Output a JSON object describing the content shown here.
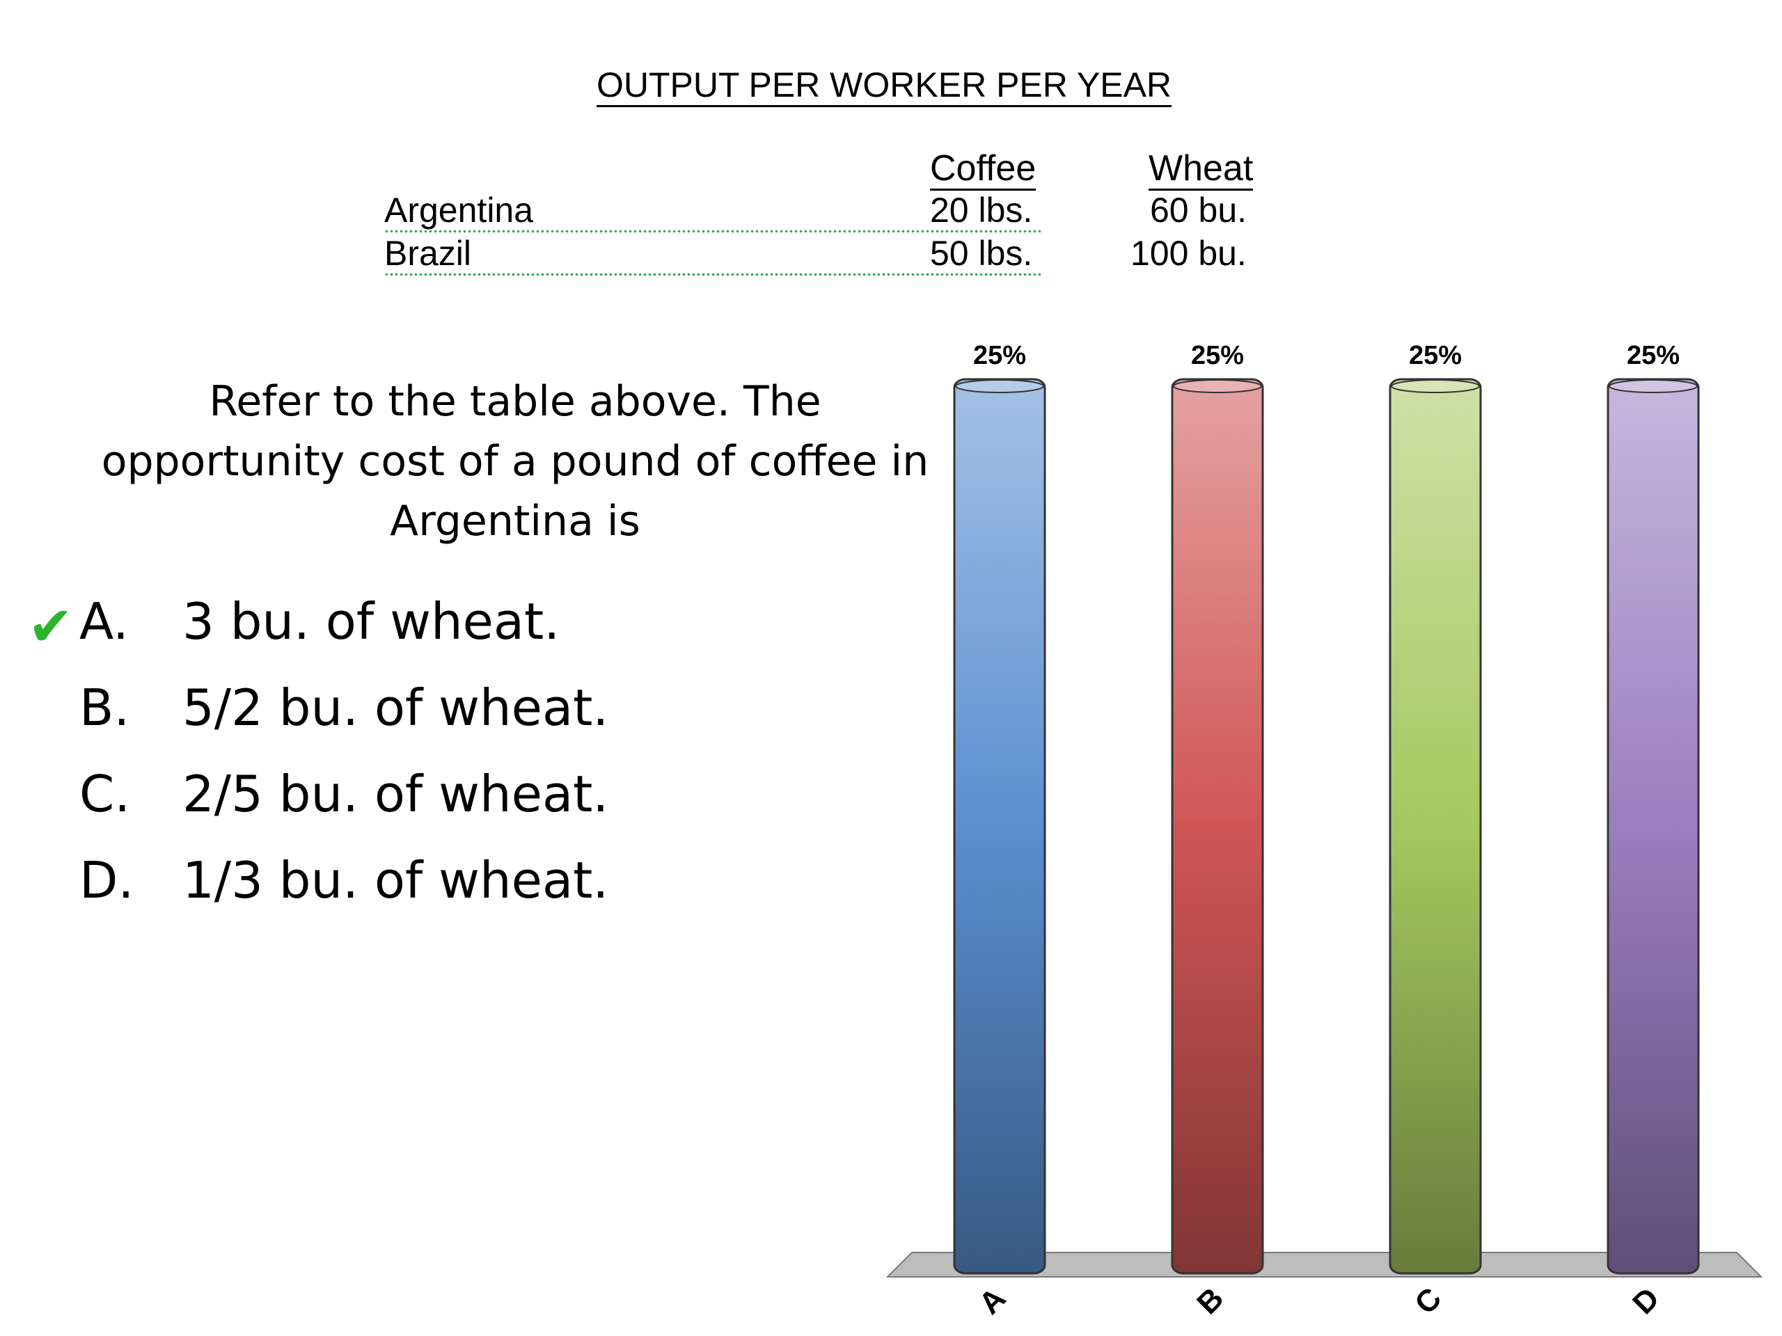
{
  "table": {
    "title": "OUTPUT PER WORKER PER YEAR",
    "columns": [
      "Coffee",
      "Wheat"
    ],
    "rows": [
      {
        "country": "Argentina",
        "coffee": "20 lbs.",
        "wheat": "60 bu."
      },
      {
        "country": "Brazil",
        "coffee": "50 lbs.",
        "wheat": "100 bu."
      }
    ]
  },
  "question": {
    "text": "Refer to the table above. The opportunity cost of a pound of coffee in Argentina is",
    "correct": "A",
    "options": [
      {
        "letter": "A.",
        "text": "3 bu. of wheat."
      },
      {
        "letter": "B.",
        "text": "5/2 bu. of wheat."
      },
      {
        "letter": "C.",
        "text": "2/5 bu. of wheat."
      },
      {
        "letter": "D.",
        "text": "1/3 bu. of wheat."
      }
    ]
  },
  "chart_data": {
    "type": "bar",
    "categories": [
      "A",
      "B",
      "C",
      "D"
    ],
    "values": [
      25,
      25,
      25,
      25
    ],
    "value_labels": [
      "25%",
      "25%",
      "25%",
      "25%"
    ],
    "ylim": [
      0,
      25
    ],
    "colors": [
      "#5b8fd0",
      "#d05656",
      "#a6c860",
      "#9a7ec0"
    ],
    "grid": false
  }
}
